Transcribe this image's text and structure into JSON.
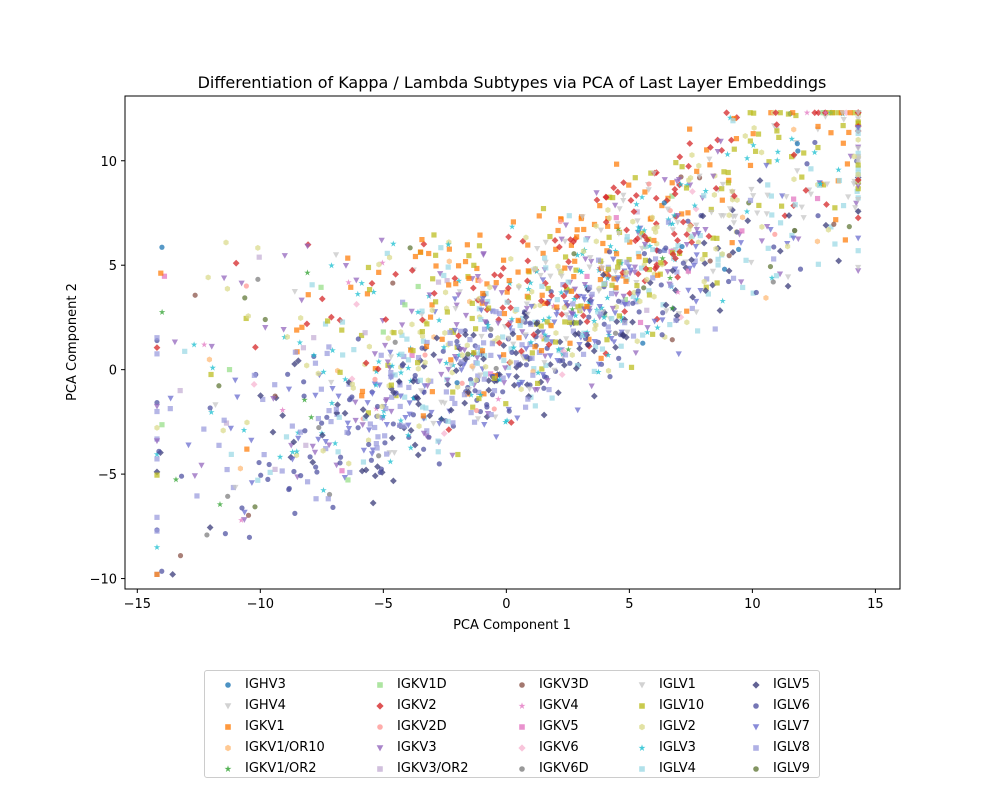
{
  "chart_data": {
    "type": "scatter",
    "title": "Differentiation of Kappa / Lambda Subtypes via PCA of Last Layer Embeddings",
    "xlabel": "PCA Component 1",
    "ylabel": "PCA Component 2",
    "xlim": [
      -15.5,
      16.0
    ],
    "ylim": [
      -10.5,
      13.1
    ],
    "xticks": [
      -15,
      -10,
      -5,
      0,
      5,
      10,
      15
    ],
    "yticks": [
      -10,
      -5,
      0,
      5,
      10
    ],
    "xtick_labels": [
      "−15",
      "−10",
      "−5",
      "0",
      "5",
      "10",
      "15"
    ],
    "ytick_labels": [
      "−10",
      "−5",
      "0",
      "5",
      "10"
    ],
    "grid": false,
    "legend_position": "below plot, 5 columns",
    "series": [
      {
        "name": "IGHV3",
        "color": "#1f77b4",
        "marker": "circle"
      },
      {
        "name": "IGHV4",
        "color": "#c7c7c7",
        "marker": "triangle-down"
      },
      {
        "name": "IGKV1",
        "color": "#ff7f0e",
        "marker": "square"
      },
      {
        "name": "IGKV1/OR10",
        "color": "#ffbb78",
        "marker": "hexagon"
      },
      {
        "name": "IGKV1/OR2",
        "color": "#2ca02c",
        "marker": "star"
      },
      {
        "name": "IGKV1D",
        "color": "#98df8a",
        "marker": "square"
      },
      {
        "name": "IGKV2",
        "color": "#d62728",
        "marker": "diamond"
      },
      {
        "name": "IGKV2D",
        "color": "#ff9896",
        "marker": "circle"
      },
      {
        "name": "IGKV3",
        "color": "#9467bd",
        "marker": "triangle-down"
      },
      {
        "name": "IGKV3/OR2",
        "color": "#c5b0d5",
        "marker": "square"
      },
      {
        "name": "IGKV3D",
        "color": "#8c564b",
        "marker": "circle"
      },
      {
        "name": "IGKV4",
        "color": "#e377c2",
        "marker": "star"
      },
      {
        "name": "IGKV5",
        "color": "#e377c2",
        "marker": "square"
      },
      {
        "name": "IGKV6",
        "color": "#f7b6d2",
        "marker": "diamond"
      },
      {
        "name": "IGKV6D",
        "color": "#7f7f7f",
        "marker": "circle"
      },
      {
        "name": "IGLV1",
        "color": "#c7c7c7",
        "marker": "triangle-down"
      },
      {
        "name": "IGLV10",
        "color": "#bcbd22",
        "marker": "square"
      },
      {
        "name": "IGLV2",
        "color": "#dbdb8d",
        "marker": "hexagon"
      },
      {
        "name": "IGLV3",
        "color": "#17becf",
        "marker": "star"
      },
      {
        "name": "IGLV4",
        "color": "#9edae5",
        "marker": "square"
      },
      {
        "name": "IGLV5",
        "color": "#393b79",
        "marker": "diamond"
      },
      {
        "name": "IGLV6",
        "color": "#5254a3",
        "marker": "circle"
      },
      {
        "name": "IGLV7",
        "color": "#6b6ecf",
        "marker": "triangle-down"
      },
      {
        "name": "IGLV8",
        "color": "#9c9ede",
        "marker": "square"
      },
      {
        "name": "IGLV9",
        "color": "#637939",
        "marker": "circle"
      }
    ]
  }
}
